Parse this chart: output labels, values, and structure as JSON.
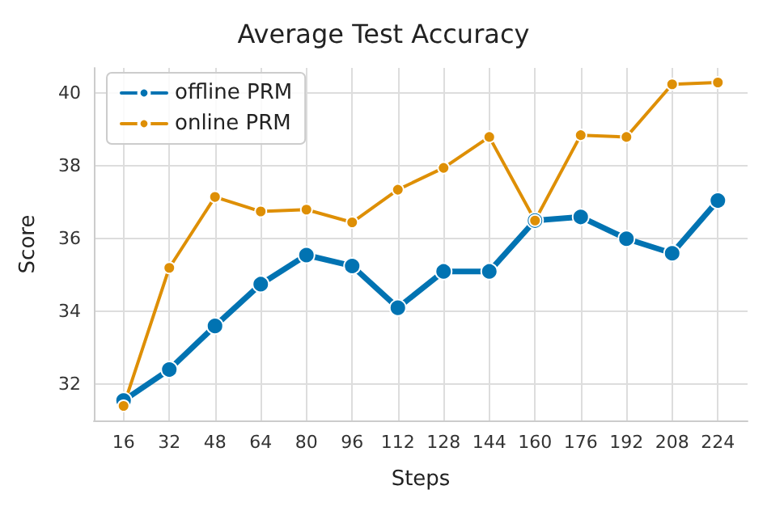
{
  "chart_data": {
    "type": "line",
    "title": "Average Test Accuracy",
    "xlabel": "Steps",
    "ylabel": "Score",
    "x": [
      16,
      32,
      48,
      64,
      80,
      96,
      112,
      128,
      144,
      160,
      176,
      192,
      208,
      224
    ],
    "series": [
      {
        "name": "offline PRM",
        "color": "#0173b2",
        "values": [
          31.55,
          32.4,
          33.6,
          34.75,
          35.55,
          35.25,
          34.1,
          35.1,
          35.1,
          36.5,
          36.6,
          36.0,
          35.6,
          37.05
        ]
      },
      {
        "name": "online PRM",
        "color": "#de8f05",
        "values": [
          31.4,
          35.2,
          37.15,
          36.75,
          36.8,
          36.45,
          37.35,
          37.95,
          38.8,
          36.5,
          38.85,
          38.8,
          40.25,
          40.3
        ]
      }
    ],
    "xlim": [
      5.6,
      234.4
    ],
    "xticks": [
      16,
      32,
      48,
      64,
      80,
      96,
      112,
      128,
      144,
      160,
      176,
      192,
      208,
      224
    ],
    "ylim": [
      31.0,
      40.7
    ],
    "yticks": [
      32,
      34,
      36,
      38,
      40
    ],
    "grid": true,
    "legend": "top left",
    "marker": "circle",
    "line_style": "solid"
  }
}
